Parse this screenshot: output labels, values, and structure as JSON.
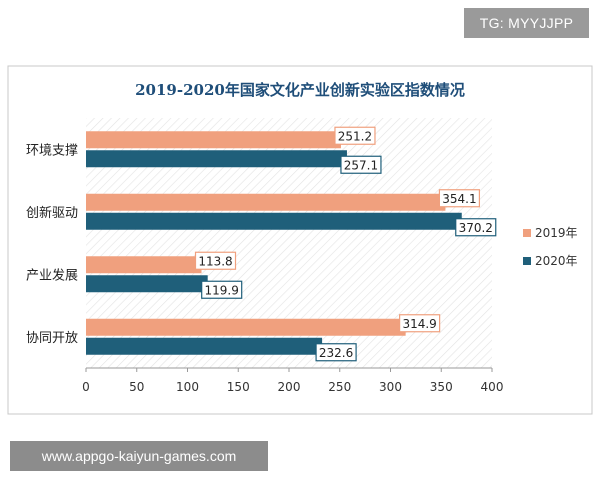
{
  "watermarks": {
    "top": "TG: MYYJJPP",
    "bottom": "www.appgo-kaiyun-games.com"
  },
  "colors": {
    "series_2019": "#f0a07e",
    "series_2020": "#1f5f7a",
    "title": "#1f4e79",
    "frame": "#c8c8c8"
  },
  "chart_data": {
    "type": "bar",
    "orientation": "horizontal",
    "title": "2019-2020年国家文化产业创新实验区指数情况",
    "categories": [
      "环境支撑",
      "创新驱动",
      "产业发展",
      "协同开放"
    ],
    "series": [
      {
        "name": "2019年",
        "values": [
          251.2,
          354.1,
          113.8,
          314.9
        ]
      },
      {
        "name": "2020年",
        "values": [
          257.1,
          370.2,
          119.9,
          232.6
        ]
      }
    ],
    "x_ticks": [
      "0",
      "50",
      "100",
      "150",
      "200",
      "250",
      "300",
      "350",
      "400"
    ],
    "xlim": [
      0,
      400
    ],
    "legend_position": "right",
    "data_labels": true,
    "grid": false
  }
}
